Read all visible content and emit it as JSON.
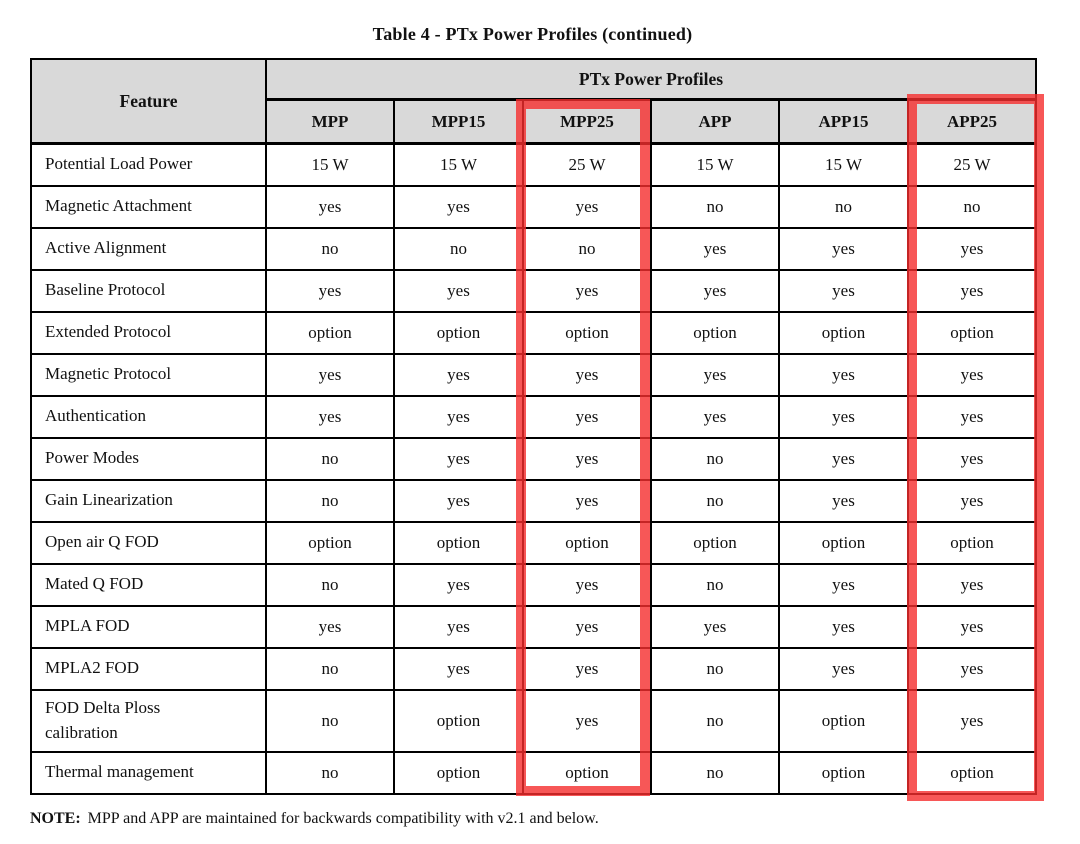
{
  "title": "Table 4 - PTx Power Profiles (continued)",
  "table": {
    "feature_header": "Feature",
    "group_header": "PTx Power Profiles",
    "columns": [
      "MPP",
      "MPP15",
      "MPP25",
      "APP",
      "APP15",
      "APP25"
    ],
    "rows": [
      {
        "feature": "Potential Load Power",
        "values": [
          "15 W",
          "15 W",
          "25 W",
          "15 W",
          "15 W",
          "25 W"
        ]
      },
      {
        "feature": "Magnetic Attachment",
        "values": [
          "yes",
          "yes",
          "yes",
          "no",
          "no",
          "no"
        ]
      },
      {
        "feature": "Active Alignment",
        "values": [
          "no",
          "no",
          "no",
          "yes",
          "yes",
          "yes"
        ]
      },
      {
        "feature": "Baseline Protocol",
        "values": [
          "yes",
          "yes",
          "yes",
          "yes",
          "yes",
          "yes"
        ]
      },
      {
        "feature": "Extended Protocol",
        "values": [
          "option",
          "option",
          "option",
          "option",
          "option",
          "option"
        ]
      },
      {
        "feature": "Magnetic Protocol",
        "values": [
          "yes",
          "yes",
          "yes",
          "yes",
          "yes",
          "yes"
        ]
      },
      {
        "feature": "Authentication",
        "values": [
          "yes",
          "yes",
          "yes",
          "yes",
          "yes",
          "yes"
        ]
      },
      {
        "feature": "Power Modes",
        "values": [
          "no",
          "yes",
          "yes",
          "no",
          "yes",
          "yes"
        ]
      },
      {
        "feature": "Gain Linearization",
        "values": [
          "no",
          "yes",
          "yes",
          "no",
          "yes",
          "yes"
        ]
      },
      {
        "feature": "Open air Q FOD",
        "values": [
          "option",
          "option",
          "option",
          "option",
          "option",
          "option"
        ]
      },
      {
        "feature": "Mated Q FOD",
        "values": [
          "no",
          "yes",
          "yes",
          "no",
          "yes",
          "yes"
        ]
      },
      {
        "feature": "MPLA FOD",
        "values": [
          "yes",
          "yes",
          "yes",
          "yes",
          "yes",
          "yes"
        ]
      },
      {
        "feature": "MPLA2 FOD",
        "values": [
          "no",
          "yes",
          "yes",
          "no",
          "yes",
          "yes"
        ]
      },
      {
        "feature": "FOD Delta Ploss\ncalibration",
        "values": [
          "no",
          "option",
          "yes",
          "no",
          "option",
          "yes"
        ]
      },
      {
        "feature": "Thermal management",
        "values": [
          "no",
          "option",
          "option",
          "no",
          "option",
          "option"
        ]
      }
    ],
    "highlighted_columns": [
      "MPP25",
      "APP25"
    ]
  },
  "note": {
    "label": "NOTE:",
    "text": "MPP and APP are maintained for backwards compatibility with v2.1 and below."
  },
  "colors": {
    "header_bg": "#d9d9d9",
    "highlight_red": "rgba(245,45,45,0.8)",
    "border": "#000000"
  }
}
